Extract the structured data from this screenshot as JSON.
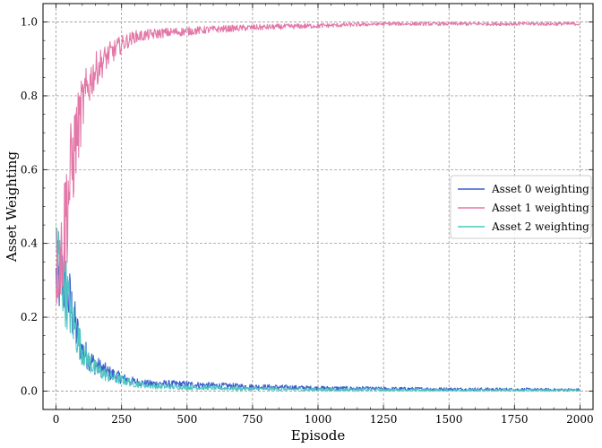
{
  "chart_data": {
    "type": "line",
    "xlabel": "Episode",
    "ylabel": "Asset  Weighting",
    "xlim": [
      -50,
      2050
    ],
    "ylim": [
      -0.05,
      1.05
    ],
    "xticks": [
      0,
      250,
      500,
      750,
      1000,
      1250,
      1500,
      1750,
      2000
    ],
    "xtick_labels": [
      "0",
      "250",
      "500",
      "750",
      "1000",
      "1250",
      "1500",
      "1750",
      "2000"
    ],
    "yticks": [
      0.0,
      0.2,
      0.4,
      0.6,
      0.8,
      1.0
    ],
    "ytick_labels": [
      "0.0",
      "0.2",
      "0.4",
      "0.6",
      "0.8",
      "1.0"
    ],
    "grid": true,
    "legend_position": "center-right",
    "series": [
      {
        "name": "Asset 0 weighting",
        "color": "#3a5fcd",
        "x": [
          0,
          10,
          20,
          30,
          40,
          50,
          75,
          100,
          125,
          150,
          200,
          250,
          300,
          350,
          400,
          500,
          600,
          750,
          1000,
          1250,
          1500,
          1750,
          2000
        ],
        "values": [
          0.3,
          0.3,
          0.31,
          0.29,
          0.27,
          0.25,
          0.17,
          0.11,
          0.09,
          0.07,
          0.05,
          0.035,
          0.025,
          0.02,
          0.02,
          0.018,
          0.015,
          0.012,
          0.008,
          0.006,
          0.005,
          0.004,
          0.003
        ]
      },
      {
        "name": "Asset 1 weighting",
        "color": "#e377a8",
        "x": [
          0,
          10,
          20,
          30,
          40,
          50,
          75,
          100,
          125,
          150,
          200,
          250,
          300,
          350,
          400,
          500,
          600,
          750,
          1000,
          1250,
          1500,
          1750,
          2000
        ],
        "values": [
          0.33,
          0.36,
          0.37,
          0.43,
          0.5,
          0.55,
          0.68,
          0.77,
          0.83,
          0.87,
          0.91,
          0.94,
          0.96,
          0.965,
          0.97,
          0.975,
          0.98,
          0.985,
          0.99,
          0.995,
          0.995,
          0.995,
          0.995
        ]
      },
      {
        "name": "Asset 2 weighting",
        "color": "#4dc7c0",
        "x": [
          0,
          10,
          20,
          30,
          40,
          50,
          75,
          100,
          125,
          150,
          200,
          250,
          300,
          350,
          400,
          500,
          600,
          750,
          1000,
          1250,
          1500,
          1750,
          2000
        ],
        "values": [
          0.37,
          0.35,
          0.32,
          0.29,
          0.26,
          0.23,
          0.16,
          0.11,
          0.08,
          0.06,
          0.04,
          0.03,
          0.02,
          0.015,
          0.012,
          0.01,
          0.008,
          0.006,
          0.004,
          0.003,
          0.002,
          0.002,
          0.002
        ]
      }
    ]
  }
}
